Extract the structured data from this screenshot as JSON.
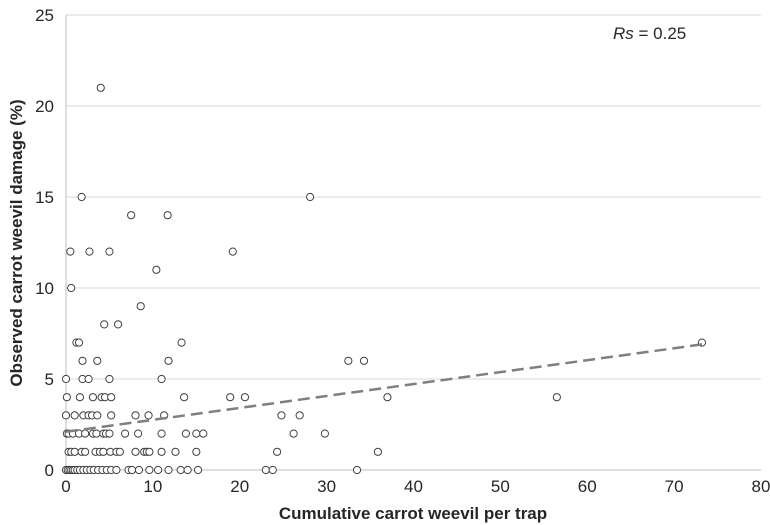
{
  "chart_data": {
    "type": "scatter",
    "xlabel": "Cumulative carrot weevil per trap",
    "ylabel": "Observed carrot weevil damage (%)",
    "xlim": [
      0,
      80
    ],
    "ylim": [
      0,
      25
    ],
    "xticks": [
      0,
      10,
      20,
      30,
      40,
      50,
      60,
      70,
      80
    ],
    "yticks": [
      0,
      5,
      10,
      15,
      20,
      25
    ],
    "grid": "horizontal",
    "annotation": {
      "italic": "Rs",
      "text": " = 0.25"
    },
    "points": [
      [
        0,
        0
      ],
      [
        0.2,
        0
      ],
      [
        0.4,
        0
      ],
      [
        0.6,
        0
      ],
      [
        0.8,
        0
      ],
      [
        1,
        0
      ],
      [
        1.3,
        0
      ],
      [
        1.6,
        0
      ],
      [
        2,
        0
      ],
      [
        2.4,
        0
      ],
      [
        2.8,
        0
      ],
      [
        3.2,
        0
      ],
      [
        3.7,
        0
      ],
      [
        4.2,
        0
      ],
      [
        4.7,
        0
      ],
      [
        5.2,
        0
      ],
      [
        5.8,
        0
      ],
      [
        7.2,
        0
      ],
      [
        7.6,
        0
      ],
      [
        8.4,
        0
      ],
      [
        9.6,
        0
      ],
      [
        10.6,
        0
      ],
      [
        11.8,
        0
      ],
      [
        13.2,
        0
      ],
      [
        14,
        0
      ],
      [
        15.2,
        0
      ],
      [
        23,
        0
      ],
      [
        23.8,
        0
      ],
      [
        33.5,
        0
      ],
      [
        0.3,
        1
      ],
      [
        0.6,
        1
      ],
      [
        1,
        1
      ],
      [
        1.8,
        1
      ],
      [
        2.2,
        1
      ],
      [
        3.4,
        1
      ],
      [
        3.9,
        1
      ],
      [
        4.3,
        1
      ],
      [
        5.1,
        1
      ],
      [
        5.8,
        1
      ],
      [
        6.2,
        1
      ],
      [
        8,
        1
      ],
      [
        9,
        1
      ],
      [
        9.3,
        1
      ],
      [
        9.6,
        1
      ],
      [
        11,
        1
      ],
      [
        12.6,
        1
      ],
      [
        15,
        1
      ],
      [
        24.3,
        1
      ],
      [
        35.9,
        1
      ],
      [
        0.1,
        2
      ],
      [
        0.3,
        2
      ],
      [
        0.8,
        2
      ],
      [
        1.5,
        2
      ],
      [
        2.2,
        2
      ],
      [
        3.1,
        2
      ],
      [
        3.5,
        2
      ],
      [
        4.3,
        2
      ],
      [
        4.6,
        2
      ],
      [
        5,
        2
      ],
      [
        6.8,
        2
      ],
      [
        8.3,
        2
      ],
      [
        11,
        2
      ],
      [
        13.8,
        2
      ],
      [
        15,
        2
      ],
      [
        15.8,
        2
      ],
      [
        26.2,
        2
      ],
      [
        29.8,
        2
      ],
      [
        0,
        3
      ],
      [
        1,
        3
      ],
      [
        2,
        3
      ],
      [
        2.6,
        3
      ],
      [
        3,
        3
      ],
      [
        3.6,
        3
      ],
      [
        5.2,
        3
      ],
      [
        8,
        3
      ],
      [
        9.5,
        3
      ],
      [
        11.3,
        3
      ],
      [
        24.8,
        3
      ],
      [
        26.9,
        3
      ],
      [
        0.1,
        4
      ],
      [
        1.6,
        4
      ],
      [
        3.1,
        4
      ],
      [
        4.1,
        4
      ],
      [
        4.5,
        4
      ],
      [
        5.2,
        4
      ],
      [
        13.6,
        4
      ],
      [
        18.9,
        4
      ],
      [
        20.6,
        4
      ],
      [
        37,
        4
      ],
      [
        56.5,
        4
      ],
      [
        0,
        5
      ],
      [
        1.9,
        5
      ],
      [
        2.6,
        5
      ],
      [
        5,
        5
      ],
      [
        11,
        5
      ],
      [
        1.9,
        6
      ],
      [
        3.6,
        6
      ],
      [
        11.8,
        6
      ],
      [
        32.5,
        6
      ],
      [
        34.3,
        6
      ],
      [
        1.2,
        7
      ],
      [
        1.5,
        7
      ],
      [
        13.3,
        7
      ],
      [
        73.2,
        7
      ],
      [
        4.4,
        8
      ],
      [
        6,
        8
      ],
      [
        8.6,
        9
      ],
      [
        0.6,
        10
      ],
      [
        10.4,
        11
      ],
      [
        0.5,
        12
      ],
      [
        2.7,
        12
      ],
      [
        5,
        12
      ],
      [
        19.2,
        12
      ],
      [
        7.5,
        14
      ],
      [
        11.7,
        14
      ],
      [
        1.8,
        15
      ],
      [
        28.1,
        15
      ],
      [
        4,
        21
      ]
    ],
    "trendline": {
      "x": [
        0,
        73.2
      ],
      "y": [
        2.1,
        6.9
      ]
    }
  }
}
